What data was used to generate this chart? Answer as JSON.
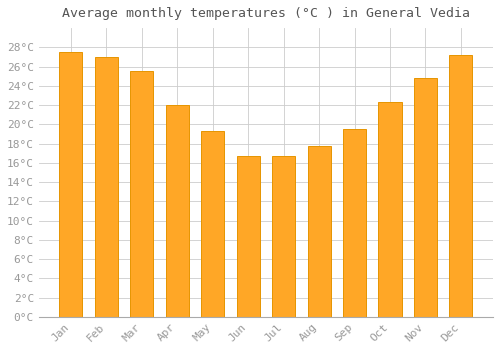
{
  "title": "Average monthly temperatures (°C ) in General Vedia",
  "months": [
    "Jan",
    "Feb",
    "Mar",
    "Apr",
    "May",
    "Jun",
    "Jul",
    "Aug",
    "Sep",
    "Oct",
    "Nov",
    "Dec"
  ],
  "values": [
    27.5,
    27.0,
    25.5,
    22.0,
    19.3,
    16.7,
    16.7,
    17.7,
    19.5,
    22.3,
    24.8,
    27.2
  ],
  "bar_color": "#FFA726",
  "bar_edge_color": "#E69500",
  "background_color": "#FFFFFF",
  "grid_color": "#CCCCCC",
  "text_color": "#999999",
  "title_color": "#555555",
  "ylim": [
    0,
    30
  ],
  "yticks": [
    0,
    2,
    4,
    6,
    8,
    10,
    12,
    14,
    16,
    18,
    20,
    22,
    24,
    26,
    28
  ],
  "title_fontsize": 9.5,
  "tick_fontsize": 8,
  "bar_width": 0.65
}
